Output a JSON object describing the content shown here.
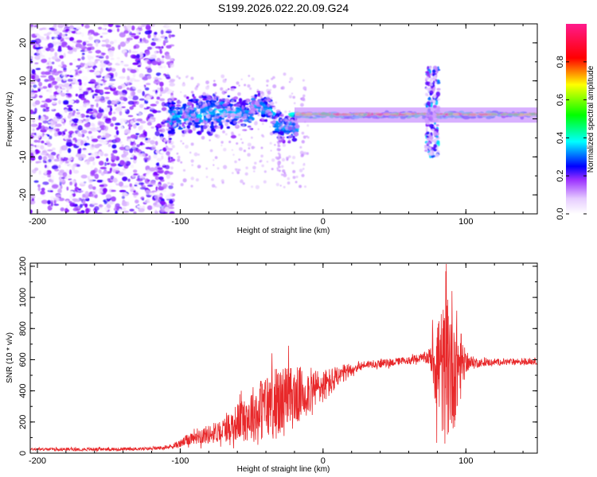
{
  "title": "S199.2026.022.20.09.G24",
  "chart_data": [
    {
      "type": "heatmap",
      "name": "spectrogram",
      "title": "S199.2026.022.20.09.G24",
      "xlabel": "Height of straight line (km)",
      "ylabel": "Frequency (Hz)",
      "xlim": [
        -205,
        150
      ],
      "ylim": [
        -25,
        25
      ],
      "xticks": [
        -200,
        -100,
        0,
        100
      ],
      "yticks": [
        -20,
        -10,
        0,
        10,
        20
      ],
      "xtick_labels": [
        "-200",
        "-100",
        "0",
        "100"
      ],
      "ytick_labels": [
        "-20",
        "-10",
        "0",
        "10",
        "20"
      ],
      "colorbar": {
        "label": "Normalized spectral amplitude",
        "range": [
          0,
          1
        ],
        "ticks": [
          0.0,
          0.2,
          0.4,
          0.6,
          0.8
        ],
        "tick_labels": [
          "0.0",
          "0.2",
          "0.4",
          "0.6",
          "0.8"
        ],
        "colormap": [
          "#ffffff",
          "#d9b3ff",
          "#8000ff",
          "#0000ff",
          "#00ffff",
          "#00ff00",
          "#ffff00",
          "#ff0000",
          "#ff00ff"
        ]
      },
      "features": [
        {
          "x_range": [
            -205,
            -105
          ],
          "freq_range": [
            -25,
            25
          ],
          "description": "scattered noise",
          "amplitude": 0.15
        },
        {
          "x_range": [
            -105,
            -20
          ],
          "freq_center": [
            0,
            1,
            2,
            3,
            4,
            5
          ],
          "spread_hz": 4,
          "amplitude": 0.35
        },
        {
          "x_range": [
            -20,
            150
          ],
          "freq_hz": 1,
          "amplitude": 0.85,
          "description": "coherent line"
        },
        {
          "x_range": [
            72,
            80
          ],
          "freq_range": [
            -10,
            15
          ],
          "description": "vertical disturbance",
          "amplitude": 0.3
        }
      ]
    },
    {
      "type": "line",
      "name": "snr",
      "xlabel": "Height of straight line (km)",
      "ylabel": "SNR (10 * v/v)",
      "xlim": [
        -205,
        150
      ],
      "ylim": [
        0,
        1220
      ],
      "xticks": [
        -200,
        -100,
        0,
        100
      ],
      "yticks": [
        0,
        200,
        400,
        600,
        800,
        1000,
        1200
      ],
      "xtick_labels": [
        "-200",
        "-100",
        "0",
        "100"
      ],
      "ytick_labels": [
        "0",
        "200",
        "400",
        "600",
        "800",
        "1000",
        "1200"
      ],
      "color": "#e8282a",
      "x": [
        -205,
        -180,
        -160,
        -140,
        -120,
        -110,
        -100,
        -90,
        -80,
        -70,
        -60,
        -50,
        -40,
        -30,
        -20,
        -10,
        0,
        10,
        20,
        30,
        40,
        50,
        60,
        70,
        75,
        80,
        85,
        90,
        95,
        100,
        110,
        120,
        130,
        140,
        150
      ],
      "y": [
        25,
        25,
        25,
        25,
        30,
        35,
        60,
        110,
        120,
        150,
        200,
        250,
        300,
        330,
        360,
        400,
        430,
        480,
        540,
        570,
        575,
        585,
        595,
        610,
        620,
        580,
        500,
        600,
        560,
        580,
        580,
        585,
        585,
        590,
        590
      ],
      "amplitude": [
        8,
        10,
        10,
        10,
        10,
        12,
        25,
        50,
        60,
        80,
        120,
        180,
        220,
        240,
        200,
        150,
        110,
        80,
        40,
        25,
        25,
        25,
        25,
        30,
        60,
        380,
        450,
        500,
        300,
        60,
        25,
        22,
        22,
        22,
        22
      ]
    }
  ]
}
